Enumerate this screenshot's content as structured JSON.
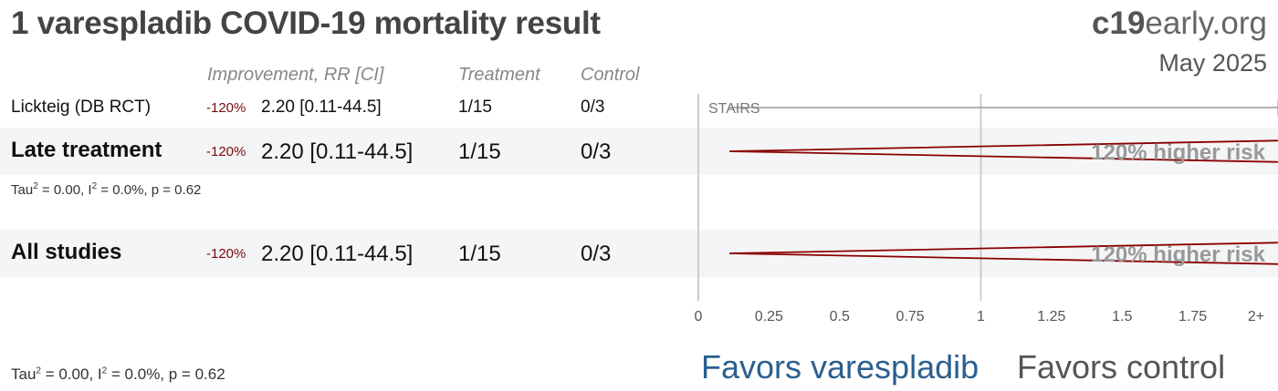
{
  "title": "1 varespladib COVID-19 mortality result",
  "brand": {
    "prefix": "c19",
    "suffix": "early.org"
  },
  "date": "May 2025",
  "headers": {
    "improvement": "Improvement, RR [CI]",
    "treatment": "Treatment",
    "control": "Control"
  },
  "rows": [
    {
      "label": "Lickteig (DB RCT)",
      "pct": "-120%",
      "rr_text": "2.20 [0.11-44.5]",
      "treatment": "1/15",
      "control": "0/3",
      "tag": "STAIRS"
    },
    {
      "label": "Late treatment",
      "pct": "-120%",
      "rr_text": "2.20 [0.11-44.5]",
      "treatment": "1/15",
      "control": "0/3",
      "risk_label": "120% higher risk",
      "het": {
        "tau": "Tau",
        "i": ", I",
        "rest": " = 0.0%, p = 0.62",
        "tau_val": " = 0.00"
      }
    },
    {
      "label": "All studies",
      "pct": "-120%",
      "rr_text": "2.20 [0.11-44.5]",
      "treatment": "1/15",
      "control": "0/3",
      "risk_label": "120% higher risk"
    }
  ],
  "footer_het": {
    "tau": "Tau",
    "tau_val": " = 0.00",
    "i": ", I",
    "rest": " = 0.0%, p = 0.62"
  },
  "favors": {
    "left": "Favors varespladib",
    "right": "Favors control"
  },
  "chart_data": {
    "type": "forest",
    "x_ticks": [
      "0",
      "0.25",
      "0.5",
      "0.75",
      "1",
      "1.25",
      "1.5",
      "1.75",
      "2+"
    ],
    "xlim": [
      0,
      2
    ],
    "reference_line": 1,
    "studies": [
      {
        "name": "Lickteig (DB RCT)",
        "rr": 2.2,
        "ci_low": 0.11,
        "ci_high": 44.5,
        "marker": "square"
      }
    ],
    "pooled": [
      {
        "name": "Late treatment",
        "rr": 2.2,
        "ci_low": 0.11,
        "ci_high": 44.5,
        "marker": "diamond"
      },
      {
        "name": "All studies",
        "rr": 2.2,
        "ci_low": 0.11,
        "ci_high": 44.5,
        "marker": "diamond"
      }
    ],
    "colors": {
      "effect": "#8b0000",
      "axis": "#cccccc",
      "tag": "#777777"
    }
  }
}
